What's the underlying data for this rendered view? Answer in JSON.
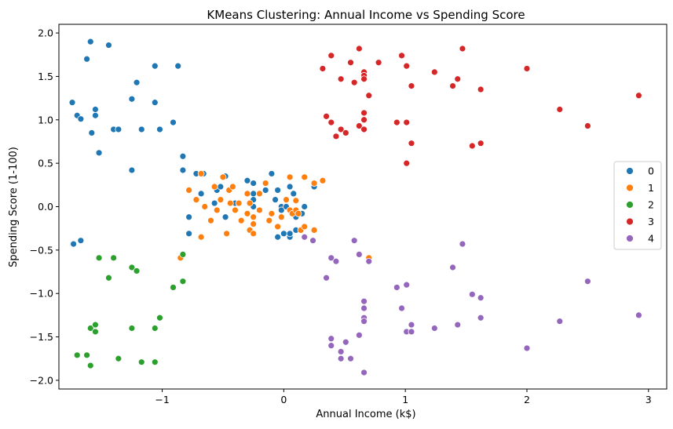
{
  "chart_data": {
    "type": "scatter",
    "title": "KMeans Clustering: Annual Income vs Spending Score",
    "xlabel": "Annual Income (k$)",
    "ylabel": "Spending Score (1-100)",
    "xlim": [
      -1.85,
      3.15
    ],
    "ylim": [
      -2.1,
      2.1
    ],
    "xticks": [
      -1,
      0,
      1,
      2,
      3
    ],
    "xtick_labels": [
      "−1",
      "0",
      "1",
      "2",
      "3"
    ],
    "yticks": [
      -2.0,
      -1.5,
      -1.0,
      -0.5,
      0.0,
      0.5,
      1.0,
      1.5,
      2.0
    ],
    "ytick_labels": [
      "−2.0",
      "−1.5",
      "−1.0",
      "−0.5",
      "0.0",
      "0.5",
      "1.0",
      "1.5",
      "2.0"
    ],
    "grid": false,
    "legend_position": "right",
    "series": [
      {
        "name": "0",
        "color": "#1f77b4",
        "points": [
          [
            -1.74,
            1.2
          ],
          [
            -1.7,
            1.05
          ],
          [
            -1.67,
            1.01
          ],
          [
            -1.62,
            1.7
          ],
          [
            -1.59,
            1.9
          ],
          [
            -1.58,
            0.85
          ],
          [
            -1.55,
            1.05
          ],
          [
            -1.55,
            1.12
          ],
          [
            -1.52,
            0.62
          ],
          [
            -1.44,
            1.86
          ],
          [
            -1.4,
            0.89
          ],
          [
            -1.36,
            0.89
          ],
          [
            -1.25,
            1.24
          ],
          [
            -1.25,
            0.42
          ],
          [
            -1.21,
            1.43
          ],
          [
            -1.17,
            0.89
          ],
          [
            -1.06,
            1.62
          ],
          [
            -1.06,
            1.2
          ],
          [
            -1.02,
            0.89
          ],
          [
            -0.91,
            0.97
          ],
          [
            -0.87,
            1.62
          ],
          [
            -0.83,
            0.58
          ],
          [
            -0.83,
            0.42
          ],
          [
            -1.73,
            -0.43
          ],
          [
            -1.67,
            -0.39
          ],
          [
            -0.78,
            -0.12
          ],
          [
            -0.78,
            -0.31
          ],
          [
            -0.72,
            0.38
          ],
          [
            -0.68,
            0.15
          ],
          [
            -0.66,
            0.38
          ],
          [
            -0.57,
            0.04
          ],
          [
            -0.55,
            0.19
          ],
          [
            -0.52,
            0.23
          ],
          [
            -0.48,
            0.35
          ],
          [
            -0.48,
            -0.12
          ],
          [
            -0.4,
            0.04
          ],
          [
            -0.3,
            0.3
          ],
          [
            -0.25,
            0.27
          ],
          [
            -0.25,
            0.15
          ],
          [
            -0.25,
            0.08
          ],
          [
            -0.25,
            0.0
          ],
          [
            -0.15,
            0.19
          ],
          [
            -0.1,
            0.38
          ],
          [
            -0.07,
            0.08
          ],
          [
            -0.05,
            0.19
          ],
          [
            -0.05,
            -0.35
          ],
          [
            -0.02,
            0.0
          ],
          [
            -0.02,
            -0.04
          ],
          [
            0.0,
            -0.31
          ],
          [
            0.02,
            0.0
          ],
          [
            0.05,
            0.23
          ],
          [
            0.05,
            -0.35
          ],
          [
            0.05,
            -0.31
          ],
          [
            0.08,
            0.15
          ],
          [
            0.1,
            -0.12
          ],
          [
            0.1,
            -0.27
          ],
          [
            0.15,
            -0.08
          ],
          [
            0.17,
            0.0
          ],
          [
            0.25,
            0.23
          ]
        ]
      },
      {
        "name": "1",
        "color": "#ff7f0e",
        "points": [
          [
            -0.78,
            0.19
          ],
          [
            -0.72,
            0.08
          ],
          [
            -0.68,
            0.38
          ],
          [
            -0.68,
            -0.35
          ],
          [
            -0.65,
            0.0
          ],
          [
            -0.6,
            -0.16
          ],
          [
            -0.57,
            0.23
          ],
          [
            -0.55,
            -0.04
          ],
          [
            -0.52,
            0.08
          ],
          [
            -0.5,
            0.34
          ],
          [
            -0.47,
            -0.31
          ],
          [
            -0.45,
            0.19
          ],
          [
            -0.44,
            0.04
          ],
          [
            -0.42,
            0.23
          ],
          [
            -0.4,
            -0.04
          ],
          [
            -0.37,
            0.04
          ],
          [
            -0.35,
            -0.16
          ],
          [
            -0.3,
            -0.08
          ],
          [
            -0.3,
            0.15
          ],
          [
            -0.28,
            0.04
          ],
          [
            -0.28,
            -0.27
          ],
          [
            -0.25,
            -0.12
          ],
          [
            -0.25,
            -0.2
          ],
          [
            -0.25,
            -0.31
          ],
          [
            -0.2,
            0.15
          ],
          [
            -0.2,
            -0.04
          ],
          [
            -0.15,
            0.27
          ],
          [
            -0.12,
            -0.16
          ],
          [
            -0.1,
            -0.08
          ],
          [
            -0.05,
            -0.23
          ],
          [
            -0.02,
            -0.12
          ],
          [
            0.02,
            0.08
          ],
          [
            0.05,
            0.34
          ],
          [
            0.05,
            -0.04
          ],
          [
            0.07,
            -0.08
          ],
          [
            0.1,
            0.07
          ],
          [
            0.1,
            -0.04
          ],
          [
            0.12,
            -0.08
          ],
          [
            0.14,
            -0.27
          ],
          [
            0.17,
            0.34
          ],
          [
            0.17,
            -0.23
          ],
          [
            0.25,
            0.27
          ],
          [
            0.25,
            -0.27
          ],
          [
            0.32,
            0.3
          ],
          [
            -0.85,
            -0.59
          ],
          [
            0.7,
            -0.59
          ]
        ]
      },
      {
        "name": "2",
        "color": "#2ca02c",
        "points": [
          [
            -1.7,
            -1.71
          ],
          [
            -1.62,
            -1.71
          ],
          [
            -1.59,
            -1.4
          ],
          [
            -1.55,
            -1.36
          ],
          [
            -1.55,
            -1.44
          ],
          [
            -1.52,
            -0.59
          ],
          [
            -1.44,
            -0.82
          ],
          [
            -1.4,
            -0.59
          ],
          [
            -1.36,
            -1.75
          ],
          [
            -1.25,
            -0.7
          ],
          [
            -1.25,
            -1.4
          ],
          [
            -1.21,
            -0.74
          ],
          [
            -1.17,
            -1.79
          ],
          [
            -1.06,
            -1.79
          ],
          [
            -1.06,
            -1.4
          ],
          [
            -1.02,
            -1.28
          ],
          [
            -0.91,
            -0.93
          ],
          [
            -0.83,
            -0.55
          ],
          [
            -0.83,
            -0.86
          ],
          [
            -1.59,
            -1.83
          ]
        ]
      },
      {
        "name": "3",
        "color": "#d62728",
        "points": [
          [
            0.32,
            1.59
          ],
          [
            0.35,
            1.04
          ],
          [
            0.39,
            1.74
          ],
          [
            0.39,
            0.97
          ],
          [
            0.43,
            0.81
          ],
          [
            0.47,
            1.47
          ],
          [
            0.47,
            0.89
          ],
          [
            0.51,
            0.85
          ],
          [
            0.55,
            1.66
          ],
          [
            0.58,
            1.43
          ],
          [
            0.62,
            1.82
          ],
          [
            0.62,
            0.93
          ],
          [
            0.66,
            1.55
          ],
          [
            0.66,
            1.51
          ],
          [
            0.66,
            1.47
          ],
          [
            0.66,
            1.08
          ],
          [
            0.66,
            1.0
          ],
          [
            0.66,
            0.89
          ],
          [
            0.7,
            1.28
          ],
          [
            0.78,
            1.66
          ],
          [
            0.93,
            0.97
          ],
          [
            0.97,
            1.74
          ],
          [
            1.01,
            1.62
          ],
          [
            1.01,
            0.97
          ],
          [
            1.01,
            0.5
          ],
          [
            1.05,
            1.39
          ],
          [
            1.05,
            0.73
          ],
          [
            1.24,
            1.55
          ],
          [
            1.39,
            1.39
          ],
          [
            1.43,
            1.47
          ],
          [
            1.47,
            1.82
          ],
          [
            1.55,
            0.7
          ],
          [
            1.62,
            1.35
          ],
          [
            1.62,
            0.73
          ],
          [
            2.0,
            1.59
          ],
          [
            2.27,
            1.12
          ],
          [
            2.5,
            0.93
          ],
          [
            2.92,
            1.28
          ]
        ]
      },
      {
        "name": "4",
        "color": "#9467bd",
        "points": [
          [
            0.17,
            -0.35
          ],
          [
            0.24,
            -0.39
          ],
          [
            0.35,
            -0.82
          ],
          [
            0.39,
            -0.59
          ],
          [
            0.39,
            -1.52
          ],
          [
            0.39,
            -1.6
          ],
          [
            0.43,
            -0.63
          ],
          [
            0.47,
            -1.67
          ],
          [
            0.47,
            -1.75
          ],
          [
            0.51,
            -1.56
          ],
          [
            0.55,
            -1.75
          ],
          [
            0.58,
            -0.39
          ],
          [
            0.62,
            -0.55
          ],
          [
            0.62,
            -1.48
          ],
          [
            0.66,
            -1.09
          ],
          [
            0.66,
            -1.17
          ],
          [
            0.66,
            -1.28
          ],
          [
            0.66,
            -1.32
          ],
          [
            0.66,
            -1.91
          ],
          [
            0.7,
            -0.63
          ],
          [
            0.93,
            -0.93
          ],
          [
            0.97,
            -1.17
          ],
          [
            1.01,
            -0.9
          ],
          [
            1.01,
            -1.44
          ],
          [
            1.05,
            -1.36
          ],
          [
            1.05,
            -1.44
          ],
          [
            1.24,
            -1.4
          ],
          [
            1.39,
            -0.7
          ],
          [
            1.43,
            -1.36
          ],
          [
            1.47,
            -0.43
          ],
          [
            1.55,
            -1.01
          ],
          [
            1.62,
            -1.05
          ],
          [
            1.62,
            -1.28
          ],
          [
            2.0,
            -1.63
          ],
          [
            2.27,
            -1.32
          ],
          [
            2.5,
            -0.86
          ],
          [
            2.92,
            -1.25
          ]
        ]
      }
    ]
  }
}
